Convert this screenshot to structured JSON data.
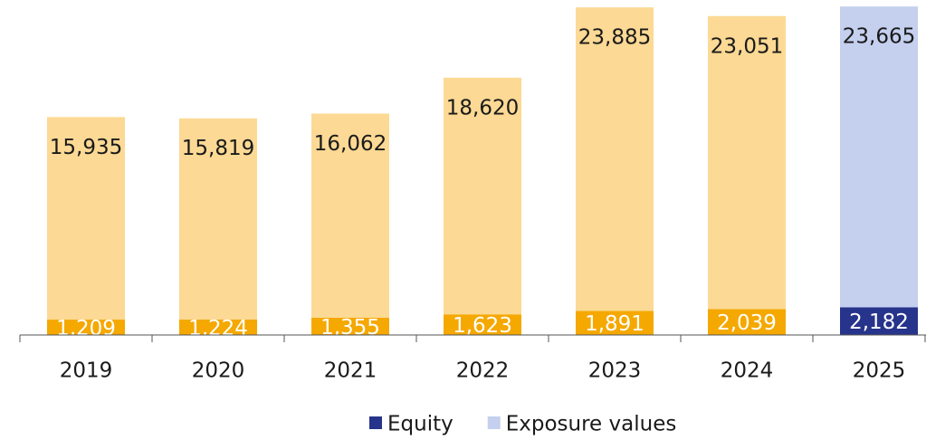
{
  "chart_data": {
    "type": "stacked_bar",
    "categories": [
      "2019",
      "2020",
      "2021",
      "2022",
      "2023",
      "2024",
      "2025"
    ],
    "series": [
      {
        "name": "Equity",
        "color": "#27348b",
        "colors": [
          "#f5a800",
          "#f5a800",
          "#f5a800",
          "#f5a800",
          "#f5a800",
          "#f5a800",
          "#27348b"
        ],
        "values": [
          1209,
          1224,
          1355,
          1623,
          1891,
          2039,
          2182
        ],
        "value_labels": [
          "1,209",
          "1,224",
          "1,355",
          "1,623",
          "1,891",
          "2,039",
          "2,182"
        ]
      },
      {
        "name": "Exposure values",
        "color": "#c5cfee",
        "colors": [
          "#fcd994",
          "#fcd994",
          "#fcd994",
          "#fcd994",
          "#fcd994",
          "#fcd994",
          "#c5cfee"
        ],
        "values": [
          15935,
          15819,
          16062,
          18620,
          23885,
          23051,
          23665
        ],
        "value_labels": [
          "15,935",
          "15,819",
          "16,062",
          "18,620",
          "23,885",
          "23,051",
          "23,665"
        ]
      }
    ],
    "ylim": [
      0,
      26000
    ],
    "legend": "bottom"
  }
}
